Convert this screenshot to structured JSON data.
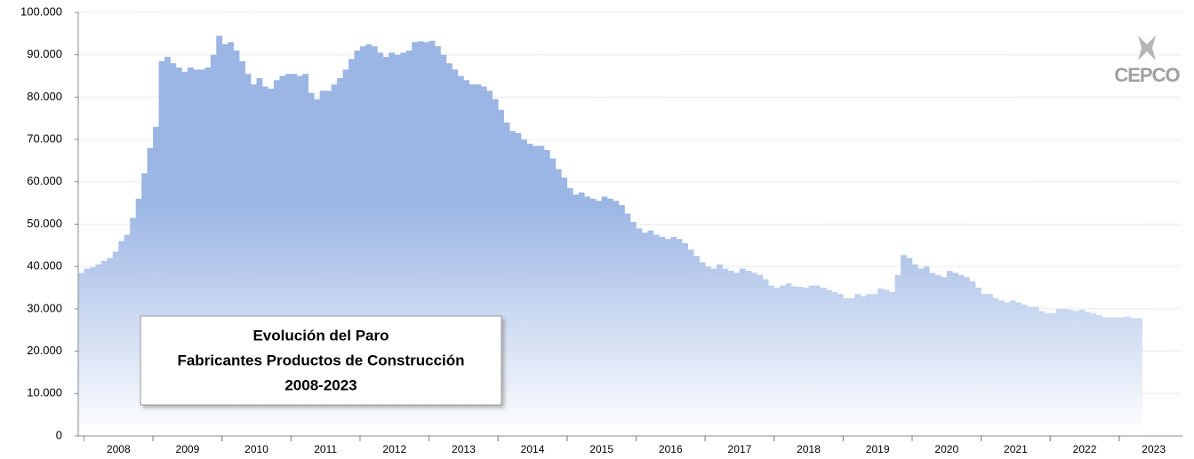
{
  "chart_data": {
    "type": "bar",
    "title": [
      "Evolución del Paro",
      "Fabricantes Productos de Construcción",
      "2008-2023"
    ],
    "logo": "CEPCO",
    "color": "#9bb5e4",
    "grid": true,
    "ylim": [
      0,
      100000
    ],
    "yticks": [
      0,
      {
        "value": 10000,
        "label": "10.000"
      },
      {
        "value": 20000,
        "label": "20.000"
      },
      {
        "value": 30000,
        "label": "30.000"
      },
      {
        "value": 40000,
        "label": "40.000"
      },
      {
        "value": 50000,
        "label": "50.000"
      },
      {
        "value": 60000,
        "label": "60.000"
      },
      {
        "value": 70000,
        "label": "70.000"
      },
      {
        "value": 80000,
        "label": "80.000"
      },
      {
        "value": 90000,
        "label": "90.000"
      },
      {
        "value": 100000,
        "label": "100.000"
      }
    ],
    "categories": [
      null,
      null,
      null,
      null,
      null,
      null,
      null,
      "2008",
      null,
      null,
      null,
      null,
      null,
      null,
      null,
      null,
      null,
      null,
      null,
      "2009",
      null,
      null,
      null,
      null,
      null,
      null,
      null,
      null,
      null,
      null,
      null,
      "2010",
      null,
      null,
      null,
      null,
      null,
      null,
      null,
      null,
      null,
      null,
      null,
      "2011",
      null,
      null,
      null,
      null,
      null,
      null,
      null,
      null,
      null,
      null,
      null,
      "2012",
      null,
      null,
      null,
      null,
      null,
      null,
      null,
      null,
      null,
      null,
      null,
      "2013",
      null,
      null,
      null,
      null,
      null,
      null,
      null,
      null,
      null,
      null,
      null,
      "2014",
      null,
      null,
      null,
      null,
      null,
      null,
      null,
      null,
      null,
      null,
      null,
      "2015",
      null,
      null,
      null,
      null,
      null,
      null,
      null,
      null,
      null,
      null,
      null,
      "2016",
      null,
      null,
      null,
      null,
      null,
      null,
      null,
      null,
      null,
      null,
      null,
      "2017",
      null,
      null,
      null,
      null,
      null,
      null,
      null,
      null,
      null,
      null,
      null,
      "2018",
      null,
      null,
      null,
      null,
      null,
      null,
      null,
      null,
      null,
      null,
      null,
      "2019",
      null,
      null,
      null,
      null,
      null,
      null,
      null,
      null,
      null,
      null,
      null,
      "2020",
      null,
      null,
      null,
      null,
      null,
      null,
      null,
      null,
      null,
      null,
      null,
      "2021",
      null,
      null,
      null,
      null,
      null,
      null,
      null,
      null,
      null,
      null,
      null,
      "2022",
      null,
      null,
      null,
      null,
      null,
      null,
      null,
      null,
      null,
      null,
      null,
      "2023",
      null,
      null,
      null,
      null
    ],
    "values": [
      38500,
      39500,
      39800,
      40500,
      41300,
      42000,
      43500,
      46000,
      47500,
      51500,
      56000,
      62000,
      68000,
      73000,
      88500,
      89500,
      88000,
      87000,
      86000,
      87000,
      86500,
      86500,
      87000,
      90000,
      94500,
      92500,
      93000,
      91000,
      88500,
      85500,
      83000,
      84500,
      82500,
      82000,
      84000,
      85000,
      85500,
      85500,
      85000,
      85500,
      81000,
      79500,
      81500,
      81500,
      83000,
      84500,
      86500,
      89000,
      91000,
      92000,
      92500,
      92000,
      90500,
      89500,
      90500,
      90000,
      90500,
      91000,
      93000,
      93200,
      93000,
      93300,
      92000,
      90000,
      88000,
      86500,
      85000,
      84000,
      83000,
      83000,
      82500,
      81500,
      79500,
      77000,
      74000,
      72000,
      71500,
      70000,
      69000,
      68500,
      68500,
      67500,
      65500,
      63000,
      61000,
      58500,
      57000,
      57500,
      56500,
      56000,
      55500,
      56500,
      56000,
      55500,
      54500,
      52500,
      50500,
      49000,
      48000,
      48500,
      47500,
      47000,
      46500,
      47000,
      46500,
      45500,
      44000,
      42500,
      41000,
      40000,
      39500,
      40500,
      39500,
      39000,
      38500,
      39500,
      39000,
      38500,
      38000,
      37000,
      35500,
      35000,
      35500,
      36000,
      35300,
      35200,
      35000,
      35500,
      35500,
      35000,
      34500,
      34000,
      33500,
      32500,
      32500,
      33500,
      33000,
      33500,
      33500,
      34800,
      34500,
      34000,
      38000,
      42700,
      42000,
      40500,
      39500,
      40000,
      38500,
      38000,
      37500,
      39000,
      38500,
      38000,
      37500,
      36500,
      35000,
      33500,
      33500,
      32500,
      32000,
      31500,
      32000,
      31500,
      31000,
      30500,
      30500,
      29500,
      29000,
      29000,
      30000,
      30000,
      29800,
      29500,
      29800,
      29300,
      29000,
      28500,
      28000,
      28000,
      28000,
      28000,
      28200,
      27800,
      27800,
      null,
      null,
      null,
      null,
      null,
      null,
      null
    ]
  }
}
